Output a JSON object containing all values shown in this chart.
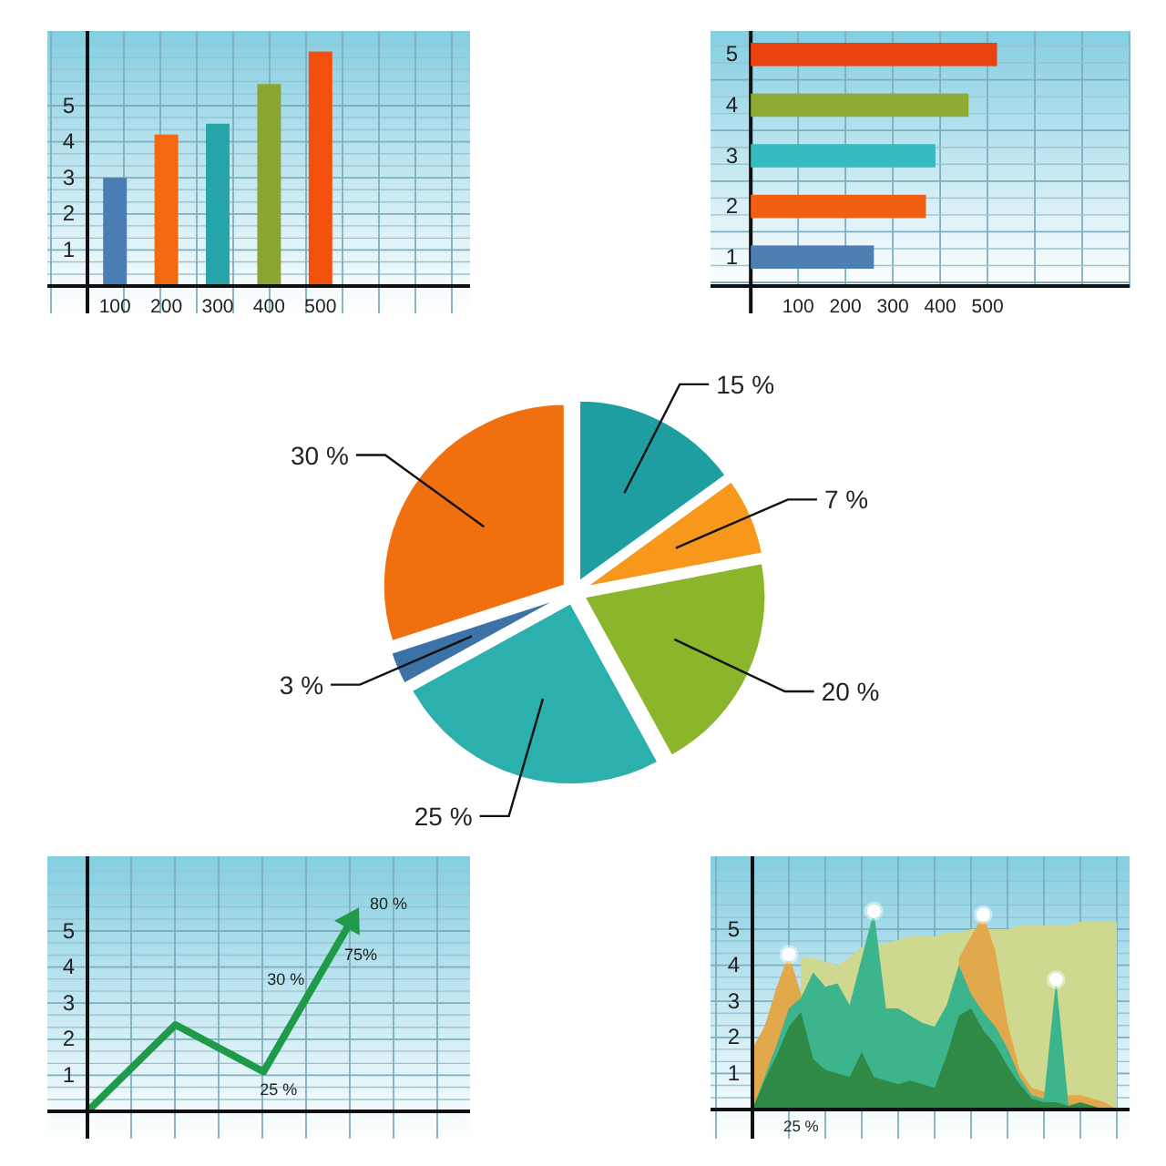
{
  "chart_data": [
    {
      "type": "bar",
      "categories": [
        "100",
        "200",
        "300",
        "400",
        "500"
      ],
      "values": [
        3.0,
        4.2,
        4.5,
        5.6,
        6.5
      ],
      "colors": [
        "#4a7db3",
        "#f2690f",
        "#25a5a9",
        "#8aa532",
        "#f2500c"
      ],
      "ylim": [
        0,
        7
      ],
      "yticks": [
        {
          "value": 0.33,
          "label": null
        },
        {
          "value": 0.67,
          "label": null
        },
        1,
        {
          "value": 1.33,
          "label": null
        },
        {
          "value": 1.67,
          "label": null
        },
        2,
        {
          "value": 2.33,
          "label": null
        },
        {
          "value": 2.67,
          "label": null
        },
        3,
        {
          "value": 3.33,
          "label": null
        },
        {
          "value": 3.67,
          "label": null
        },
        4,
        {
          "value": 4.33,
          "label": null
        },
        {
          "value": 4.67,
          "label": null
        },
        5,
        {
          "value": 5.33,
          "label": null
        },
        {
          "value": 5.67,
          "label": null
        },
        {
          "value": 6,
          "label": null
        },
        {
          "value": 6.33,
          "label": null
        },
        {
          "value": 6.67,
          "label": null
        }
      ],
      "grid": true
    },
    {
      "type": "bar",
      "orientation": "horizontal",
      "categories": [
        "5",
        "4",
        "3",
        "2",
        "1"
      ],
      "values": [
        520,
        460,
        390,
        370,
        260
      ],
      "colors": [
        "#e8420f",
        "#8fab33",
        "#35bcc0",
        "#f05f12",
        "#4e7fb2"
      ],
      "xlim": [
        -85,
        800
      ],
      "xticks": [
        100,
        200,
        300,
        400,
        500
      ],
      "grid": true
    },
    {
      "type": "pie",
      "categories": [
        null,
        null,
        null,
        null,
        null,
        null
      ],
      "values": [
        15,
        7,
        20,
        25,
        3,
        30
      ],
      "colors": [
        "#1f9ea2",
        "#f7981c",
        "#8bb52a",
        "#2bb0ad",
        "#3d72a8",
        "#f0700f"
      ],
      "value_labels": [
        "15 %",
        "7 %",
        "20 %",
        "25 %",
        "3 %",
        "30 %"
      ]
    },
    {
      "type": "line",
      "categories": [
        null,
        null,
        null,
        null
      ],
      "values": [
        0,
        2.4,
        1.1,
        5.3
      ],
      "color": "#1f9a48",
      "ylim": [
        0,
        7
      ],
      "yticks": [
        {
          "value": 0.33,
          "label": null
        },
        {
          "value": 0.67,
          "label": null
        },
        1,
        {
          "value": 1.33,
          "label": null
        },
        {
          "value": 1.67,
          "label": null
        },
        2,
        {
          "value": 2.33,
          "label": null
        },
        {
          "value": 2.67,
          "label": null
        },
        3,
        {
          "value": 3.33,
          "label": null
        },
        {
          "value": 3.67,
          "label": null
        },
        4,
        {
          "value": 4.33,
          "label": null
        },
        {
          "value": 4.67,
          "label": null
        },
        5,
        {
          "value": 5.33,
          "label": null
        },
        {
          "value": 5.67,
          "label": null
        },
        {
          "value": 6,
          "label": null
        },
        {
          "value": 6.33,
          "label": null
        },
        {
          "value": 6.67,
          "label": null
        }
      ],
      "grid": true,
      "annotations": [
        "25 %",
        "30 %",
        "75%",
        "80 %"
      ]
    },
    {
      "type": "area",
      "categories": [
        null,
        null,
        null,
        null,
        "25 %",
        null,
        null,
        null,
        null,
        null,
        null,
        null,
        null,
        null,
        null,
        null,
        null,
        null,
        null,
        null,
        null,
        null,
        null,
        null,
        null,
        null,
        null,
        null,
        null,
        null,
        null
      ],
      "series": [
        {
          "color": "#cfd88f",
          "values": [
            null,
            null,
            null,
            null,
            4.2,
            4.2,
            4.1,
            4.0,
            4.2,
            4.5,
            null,
            4.6,
            4.7,
            4.8,
            4.8,
            4.8,
            4.9,
            4.9,
            5.0,
            null,
            5.0,
            5.0,
            5.1,
            5.1,
            5.1,
            5.1,
            5.1,
            5.2,
            5.2,
            5.2,
            5.2
          ]
        },
        {
          "color": "#e2a84c",
          "values": [
            1.7,
            2.3,
            3.4,
            4.3,
            3.2,
            null,
            null,
            null,
            null,
            null,
            null,
            null,
            null,
            null,
            null,
            null,
            null,
            null,
            null,
            null,
            null,
            null,
            null,
            null,
            null,
            null,
            null,
            null,
            null,
            null,
            null
          ]
        },
        {
          "color": "#e2a84c",
          "values": [
            null,
            null,
            null,
            null,
            null,
            null,
            null,
            null,
            null,
            null,
            null,
            null,
            null,
            null,
            null,
            null,
            null,
            4.2,
            4.8,
            5.4,
            4.4,
            2.4,
            1.1,
            0.6,
            0.5,
            null,
            0.4,
            0.4,
            0.3,
            0.2,
            0
          ]
        },
        {
          "color": "#3db58c",
          "values": [
            0,
            0.9,
            1.8,
            2.8,
            3.1,
            3.8,
            3.4,
            3.5,
            2.9,
            4.2,
            5.5,
            2.8,
            2.8,
            2.6,
            2.4,
            2.3,
            2.9,
            4.0,
            3.2,
            2.7,
            2.3,
            1.7,
            0.9,
            0.4,
            0.3,
            3.6,
            0.2,
            null,
            null,
            null,
            null
          ]
        },
        {
          "color": "#2f8a45",
          "values": [
            0,
            0.8,
            1.5,
            2.3,
            2.7,
            1.4,
            1.1,
            1.0,
            0.9,
            1.6,
            0.9,
            0.8,
            0.7,
            0.8,
            0.7,
            0.6,
            1.5,
            2.6,
            2.8,
            2.2,
            1.8,
            1.2,
            0.7,
            0.3,
            0.2,
            0.2,
            0.1,
            0.2,
            0.1,
            0,
            0
          ]
        },
        {
          "type": "scatter",
          "marker": "circle",
          "color": "#ffffff",
          "values": [
            null,
            null,
            null,
            4.3,
            null,
            null,
            null,
            null,
            null,
            null,
            5.5,
            null,
            null,
            null,
            null,
            null,
            null,
            null,
            null,
            5.4,
            null,
            null,
            null,
            null,
            null,
            3.6,
            null,
            null,
            null,
            null,
            null
          ]
        }
      ],
      "ylim": [
        0,
        7
      ],
      "yticks": [
        {
          "value": 0.33,
          "label": null
        },
        {
          "value": 0.67,
          "label": null
        },
        1,
        {
          "value": 1.33,
          "label": null
        },
        {
          "value": 1.67,
          "label": null
        },
        2,
        {
          "value": 2.33,
          "label": null
        },
        {
          "value": 2.67,
          "label": null
        },
        3,
        {
          "value": 3.33,
          "label": null
        },
        {
          "value": 3.67,
          "label": null
        },
        4,
        {
          "value": 4.33,
          "label": null
        },
        {
          "value": 4.67,
          "label": null
        },
        5,
        {
          "value": 5.33,
          "label": null
        },
        {
          "value": 5.67,
          "label": null
        },
        {
          "value": 6,
          "label": null
        },
        {
          "value": 6.33,
          "label": null
        },
        {
          "value": 6.67,
          "label": null
        }
      ],
      "grid": true
    }
  ]
}
